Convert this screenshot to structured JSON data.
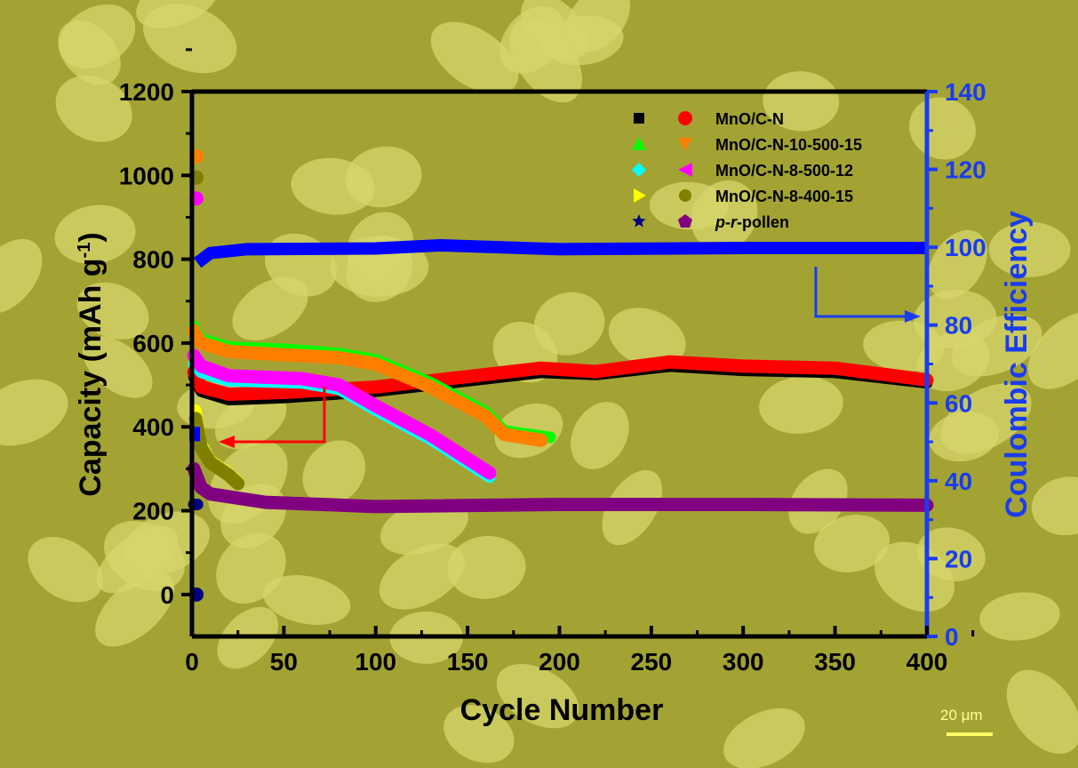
{
  "chart_data": {
    "type": "line",
    "xlabel": "Cycle Number",
    "ylabel": "Capacity (mAh g",
    "ylabel_sup": "-1",
    "ylabel_close": ")",
    "y2label": "Coulombic Efficiency",
    "xlim": [
      0,
      400
    ],
    "ylim": [
      -100,
      1200
    ],
    "y2lim": [
      0,
      140
    ],
    "xticks": [
      "0",
      "50",
      "100",
      "150",
      "200",
      "250",
      "300",
      "350",
      "400"
    ],
    "yticks": [
      "0",
      "200",
      "400",
      "600",
      "800",
      "1000",
      "1200"
    ],
    "y2ticks": [
      "0",
      "20",
      "40",
      "60",
      "80",
      "100",
      "120",
      "140"
    ],
    "legend_position": "top-right",
    "series": [
      {
        "name": "MnO/C-N",
        "kind": "charge",
        "color": "#000000",
        "marker": "square",
        "x": [
          1,
          5,
          20,
          50,
          100,
          150,
          190,
          220,
          260,
          300,
          350,
          400
        ],
        "y": [
          520,
          485,
          465,
          470,
          485,
          510,
          530,
          525,
          545,
          535,
          530,
          505
        ]
      },
      {
        "name": "MnO/C-N",
        "kind": "discharge",
        "color": "#ff0000",
        "marker": "circle",
        "x": [
          1,
          5,
          20,
          50,
          100,
          150,
          190,
          220,
          260,
          300,
          350,
          400
        ],
        "y": [
          530,
          495,
          478,
          482,
          495,
          520,
          540,
          532,
          555,
          545,
          540,
          512
        ]
      },
      {
        "name": "MnO/C-N-10-500-15",
        "kind": "charge",
        "color": "#00ff00",
        "marker": "triangle-up",
        "x": [
          1,
          5,
          20,
          50,
          80,
          100,
          130,
          160,
          170,
          195
        ],
        "y": [
          640,
          610,
          590,
          585,
          575,
          560,
          505,
          435,
          390,
          375
        ]
      },
      {
        "name": "MnO/C-N-10-500-15",
        "kind": "discharge",
        "color": "#ff7f00",
        "marker": "triangle-down",
        "x": [
          1,
          5,
          20,
          50,
          80,
          100,
          130,
          160,
          170,
          190
        ],
        "y": [
          630,
          600,
          580,
          572,
          565,
          550,
          495,
          425,
          382,
          368
        ]
      },
      {
        "name": "MnO/C-N-8-500-12",
        "kind": "charge",
        "color": "#00ffff",
        "marker": "diamond",
        "x": [
          1,
          5,
          20,
          60,
          80,
          100,
          130,
          162
        ],
        "y": [
          550,
          530,
          510,
          505,
          490,
          440,
          370,
          280
        ]
      },
      {
        "name": "MnO/C-N-8-500-12",
        "kind": "discharge",
        "color": "#ff00ff",
        "marker": "triangle-left",
        "x": [
          1,
          5,
          20,
          60,
          80,
          100,
          130,
          162
        ],
        "y": [
          570,
          545,
          522,
          515,
          500,
          450,
          380,
          290
        ]
      },
      {
        "name": "MnO/C-N-8-400-15",
        "kind": "charge",
        "color": "#ffff00",
        "marker": "triangle-right",
        "x": [
          2,
          5,
          10,
          20,
          25
        ],
        "y": [
          440,
          360,
          320,
          290,
          270
        ]
      },
      {
        "name": "MnO/C-N-8-400-15",
        "kind": "discharge",
        "color": "#7f7f00",
        "marker": "hexagon",
        "x": [
          2,
          5,
          10,
          20,
          25
        ],
        "y": [
          420,
          350,
          315,
          285,
          265
        ]
      },
      {
        "name": "p-r-pollen",
        "kind": "charge",
        "color": "#000080",
        "marker": "star",
        "x": [
          1,
          3
        ],
        "y": [
          215,
          215
        ]
      },
      {
        "name": "p-r-pollen",
        "kind": "discharge",
        "color": "#800080",
        "marker": "pentagon",
        "x": [
          1,
          5,
          10,
          40,
          100,
          200,
          300,
          400
        ],
        "y": [
          300,
          255,
          240,
          220,
          210,
          215,
          215,
          213
        ]
      }
    ],
    "first_points": [
      {
        "series": "MnO/C-N-10-500-15",
        "x": 1,
        "y": 1045,
        "color": "#ff7f00"
      },
      {
        "series": "MnO/C-N-8-400-15",
        "x": 1,
        "y": 995,
        "color": "#7f7f00"
      },
      {
        "series": "MnO/C-N-8-500-12",
        "x": 1,
        "y": 945,
        "color": "#ff00ff"
      },
      {
        "series": "p-r-pollen",
        "x": 1,
        "y": 0,
        "color": "#000080"
      }
    ],
    "coulombic_efficiency": {
      "color": "#0000ff",
      "x": [
        1,
        3,
        10,
        30,
        100,
        135,
        200,
        300,
        400
      ],
      "y": [
        52,
        96,
        98.5,
        99.5,
        99.7,
        100.5,
        99.5,
        99.8,
        99.8
      ]
    }
  },
  "legend": {
    "labels": [
      "MnO/C-N",
      "MnO/C-N-10-500-15",
      "MnO/C-N-8-500-12",
      "MnO/C-N-8-400-15",
      "p-r-pollen"
    ],
    "pollen_prefix_1": "p",
    "pollen_dash": "-",
    "pollen_prefix_2": "r",
    "pollen_suffix": "-pollen"
  },
  "scale_bar": "20 μm"
}
